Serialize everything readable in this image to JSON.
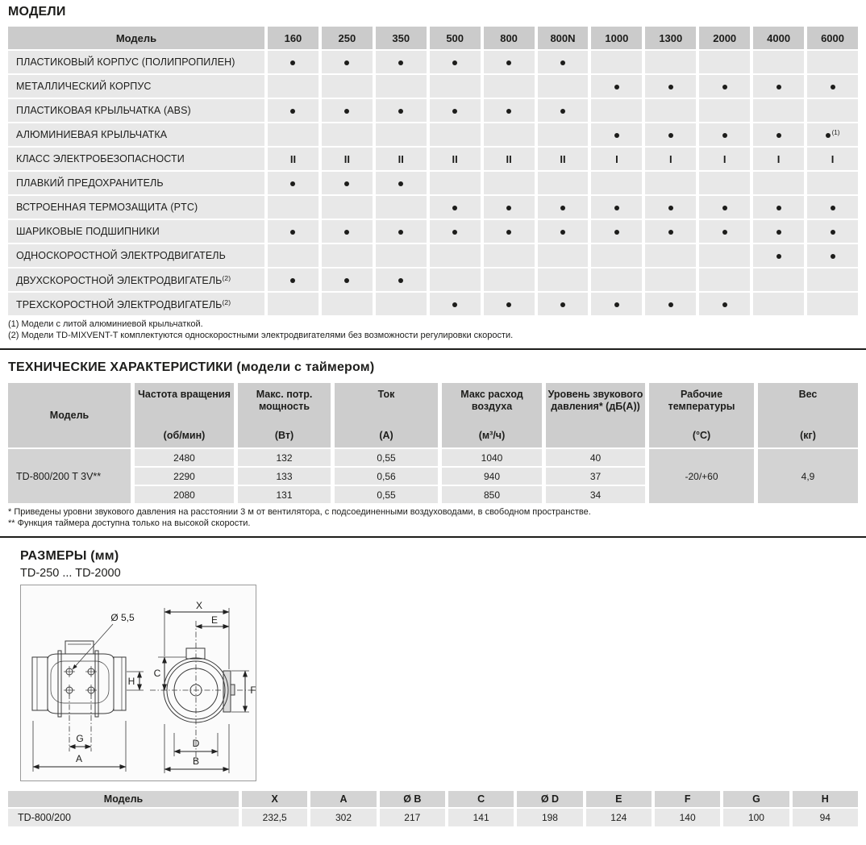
{
  "models": {
    "title": "МОДЕЛИ",
    "header_label": "Модель",
    "columns": [
      "160",
      "250",
      "350",
      "500",
      "800",
      "800N",
      "1000",
      "1300",
      "2000",
      "4000",
      "6000"
    ],
    "rows": [
      {
        "label": "ПЛАСТИКОВЫЙ КОРПУС (ПОЛИПРОПИЛЕН)",
        "sup": "",
        "cells": [
          "•",
          "•",
          "•",
          "•",
          "•",
          "•",
          "",
          "",
          "",
          "",
          ""
        ]
      },
      {
        "label": "МЕТАЛЛИЧЕСКИЙ КОРПУС",
        "sup": "",
        "cells": [
          "",
          "",
          "",
          "",
          "",
          "",
          "•",
          "•",
          "•",
          "•",
          "•"
        ]
      },
      {
        "label": "ПЛАСТИКОВАЯ КРЫЛЬЧАТКА (ABS)",
        "sup": "",
        "cells": [
          "•",
          "•",
          "•",
          "•",
          "•",
          "•",
          "",
          "",
          "",
          "",
          ""
        ]
      },
      {
        "label": "АЛЮМИНИЕВАЯ КРЫЛЬЧАТКА",
        "sup": "",
        "cells": [
          "",
          "",
          "",
          "",
          "",
          "",
          "•",
          "•",
          "•",
          "•",
          "•(1)"
        ]
      },
      {
        "label": "КЛАСС ЭЛЕКТРОБЕЗОПАСНОСТИ",
        "sup": "",
        "cells": [
          "II",
          "II",
          "II",
          "II",
          "II",
          "II",
          "I",
          "I",
          "I",
          "I",
          "I"
        ]
      },
      {
        "label": "ПЛАВКИЙ ПРЕДОХРАНИТЕЛЬ",
        "sup": "",
        "cells": [
          "•",
          "•",
          "•",
          "",
          "",
          "",
          "",
          "",
          "",
          "",
          ""
        ]
      },
      {
        "label": "ВСТРОЕННАЯ ТЕРМОЗАЩИТА (PTC)",
        "sup": "",
        "cells": [
          "",
          "",
          "",
          "•",
          "•",
          "•",
          "•",
          "•",
          "•",
          "•",
          "•"
        ]
      },
      {
        "label": "ШАРИКОВЫЕ ПОДШИПНИКИ",
        "sup": "",
        "cells": [
          "•",
          "•",
          "•",
          "•",
          "•",
          "•",
          "•",
          "•",
          "•",
          "•",
          "•"
        ]
      },
      {
        "label": "ОДНОСКОРОСТНОЙ ЭЛЕКТРОДВИГАТЕЛЬ",
        "sup": "",
        "cells": [
          "",
          "",
          "",
          "",
          "",
          "",
          "",
          "",
          "",
          "•",
          "•"
        ]
      },
      {
        "label": "ДВУХСКОРОСТНОЙ ЭЛЕКТРОДВИГАТЕЛЬ",
        "sup": "(2)",
        "cells": [
          "•",
          "•",
          "•",
          "",
          "",
          "",
          "",
          "",
          "",
          "",
          ""
        ]
      },
      {
        "label": "ТРЕХСКОРОСТНОЙ ЭЛЕКТРОДВИГАТЕЛЬ",
        "sup": "(2)",
        "cells": [
          "",
          "",
          "",
          "•",
          "•",
          "•",
          "•",
          "•",
          "•",
          "",
          ""
        ]
      }
    ],
    "footnotes": [
      "(1) Модели с литой алюминиевой крыльчаткой.",
      "(2) Модели TD-MIXVENT-T комплектуются односкоростными электродвигателями без возможности регулировки скорости."
    ]
  },
  "tech": {
    "title": "ТЕХНИЧЕСКИЕ ХАРАКТЕРИСТИКИ (модели с таймером)",
    "headers": [
      {
        "name": "Модель",
        "unit": ""
      },
      {
        "name": "Частота вращения",
        "unit": "(об/мин)"
      },
      {
        "name": "Макс. потр.\nмощность",
        "unit": "(Вт)"
      },
      {
        "name": "Ток",
        "unit": "(А)"
      },
      {
        "name": "Макс расход\nвоздуха",
        "unit": "(м³/ч)"
      },
      {
        "name": "Уровень звукового\nдавления* (дБ(А))",
        "unit": ""
      },
      {
        "name": "Рабочие\nтемпературы",
        "unit": "(°C)"
      },
      {
        "name": "Вес",
        "unit": "(кг)"
      }
    ],
    "model": "TD-800/200 T 3V**",
    "rows": [
      [
        "2480",
        "132",
        "0,55",
        "1040",
        "40"
      ],
      [
        "2290",
        "133",
        "0,56",
        "940",
        "37"
      ],
      [
        "2080",
        "131",
        "0,55",
        "850",
        "34"
      ]
    ],
    "temp_range": "-20/+60",
    "weight": "4,9",
    "footnotes": [
      "* Приведены уровни звукового давления на расстоянии 3 м от вентилятора, с подсоединенными воздуховодами, в свободном пространстве.",
      "** Функция таймера доступна только на высокой скорости."
    ]
  },
  "dimensions": {
    "title": "РАЗМЕРЫ (мм)",
    "range": "TD-250 ... TD-2000",
    "labels": {
      "dia": "Ø 5,5",
      "x": "X",
      "e": "E",
      "c": "C",
      "f": "F",
      "d": "D",
      "b": "B",
      "g": "G",
      "a": "A",
      "h": "H"
    },
    "table": {
      "headers": [
        "Модель",
        "X",
        "A",
        "Ø B",
        "C",
        "Ø D",
        "E",
        "F",
        "G",
        "H"
      ],
      "model": "TD-800/200",
      "values": [
        "232,5",
        "302",
        "217",
        "141",
        "198",
        "124",
        "140",
        "100",
        "94"
      ]
    }
  }
}
